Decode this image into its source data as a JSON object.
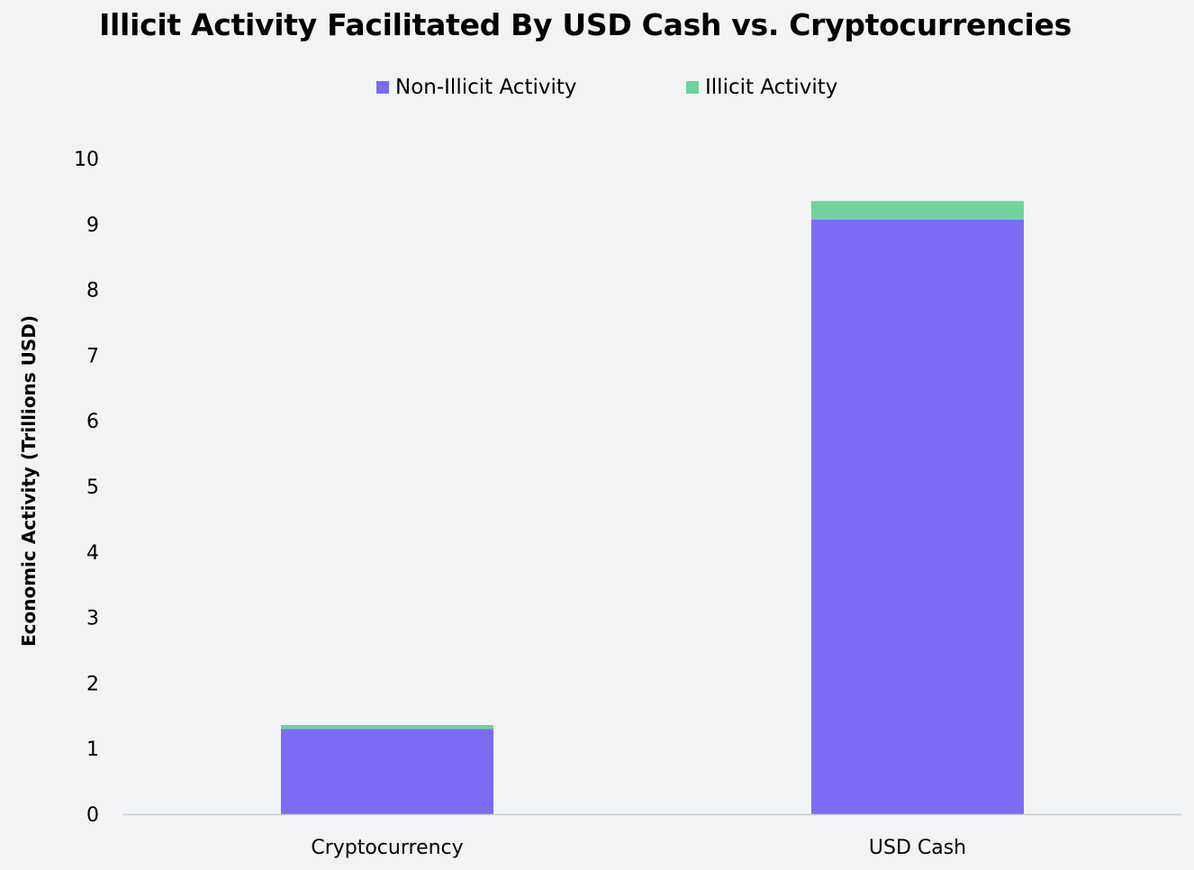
{
  "chart_data": {
    "type": "bar",
    "stacked": true,
    "title": "Illicit Activity Facilitated By USD Cash vs. Cryptocurrencies",
    "ylabel": "Economic Activity (Trillions USD)",
    "xlabel": "",
    "categories": [
      "Cryptocurrency",
      "USD Cash"
    ],
    "series": [
      {
        "name": "Non-Illicit Activity",
        "color": "#7b6bf5",
        "values": [
          1.3,
          9.07
        ]
      },
      {
        "name": "Illicit Activity",
        "color": "#6fd39d",
        "values": [
          0.06,
          0.28
        ]
      }
    ],
    "ylim": [
      0,
      10
    ],
    "yticks": [
      "0",
      "1",
      "2",
      "3",
      "4",
      "5",
      "6",
      "7",
      "8",
      "9",
      "10"
    ],
    "grid": false,
    "legend_position": "top-center"
  }
}
